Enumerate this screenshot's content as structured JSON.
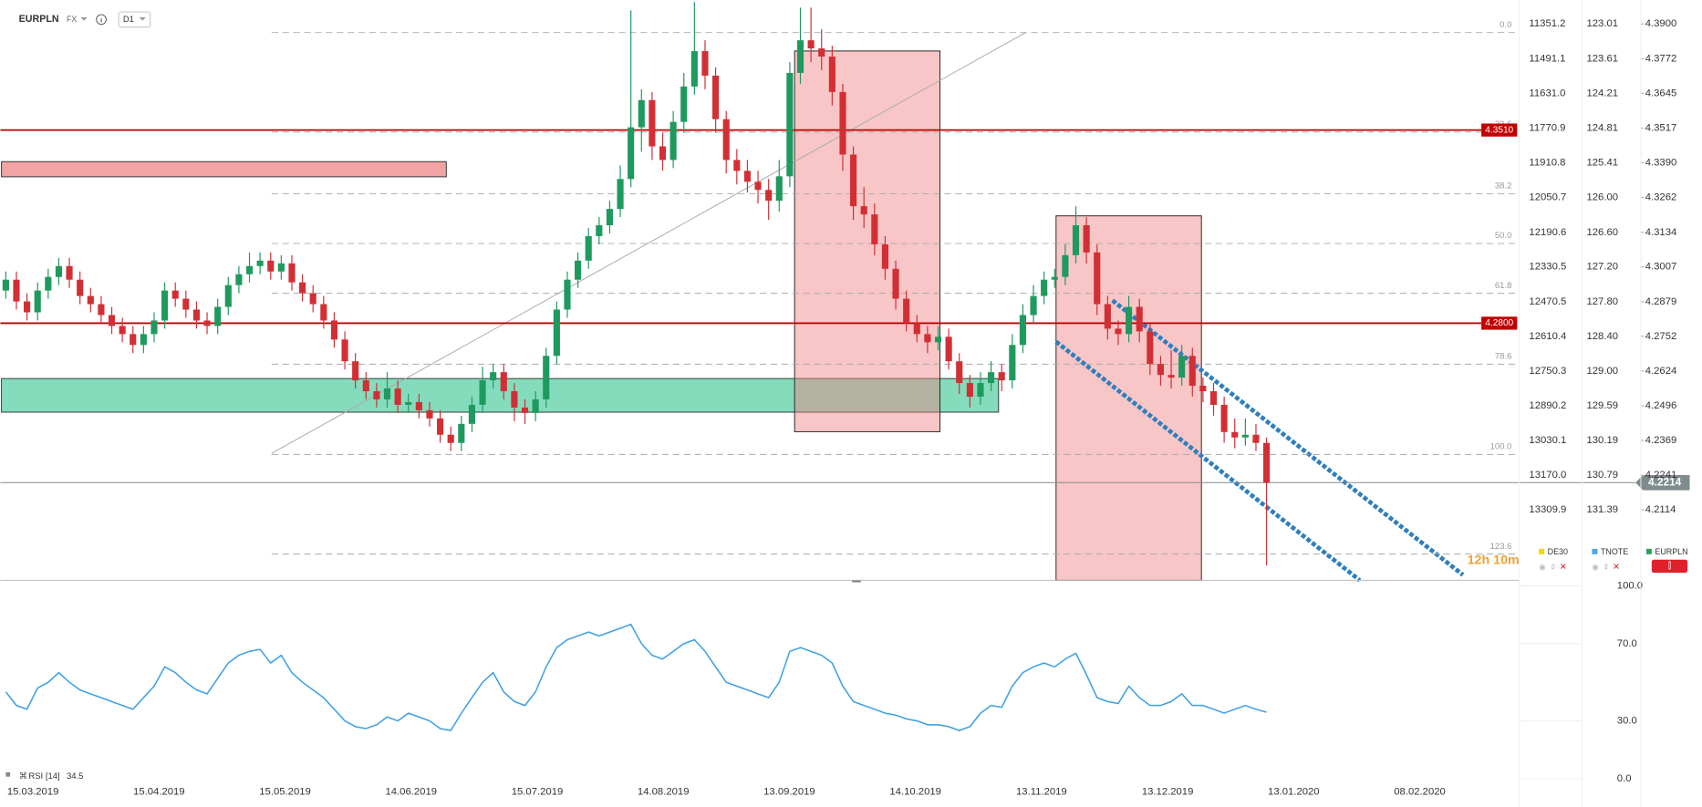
{
  "header": {
    "symbol": "EURPLN",
    "market": "FX",
    "interval": "D1"
  },
  "chart_data": [
    {
      "type": "candlestick",
      "name": "EURPLN",
      "color": "#2ca05a",
      "up_color": "#1f9a5e",
      "down_color": "#d22f35",
      "ylim": [
        4.1855,
        4.3988
      ],
      "yticks": [
        {
          "value": 4.39,
          "label": "4.3900"
        },
        4.3772,
        4.3645,
        4.3517,
        {
          "value": 4.339,
          "label": "4.3390"
        },
        4.3262,
        4.3134,
        4.3007,
        4.2879,
        4.2752,
        4.2624,
        4.2496,
        4.2369,
        4.2241,
        4.2114
      ],
      "xticks": [
        "15.03.2019",
        "15.04.2019",
        "15.05.2019",
        "14.06.2019",
        "15.07.2019",
        "14.08.2019",
        "13.09.2019",
        "14.10.2019",
        "13.11.2019",
        "13.12.2019",
        "13.01.2020",
        "08.02.2020"
      ],
      "hlines": [
        {
          "value": 4.351,
          "label": "4.3510",
          "color": "#c00000"
        },
        {
          "value": 4.28,
          "label": "4.2800",
          "color": "#c00000"
        }
      ],
      "fib_levels": [
        {
          "value": 0,
          "label": "0.0"
        },
        23.6,
        38.2,
        {
          "value": 50,
          "label": "50.0"
        },
        61.8,
        78.6,
        {
          "value": 100,
          "label": "100.0"
        },
        123.6
      ],
      "compare_axes": [
        {
          "name": "DE30",
          "color": "#f2d600",
          "ticks": [
            "11351.2",
            "11491.1",
            "11631.0",
            "11770.9",
            "11910.8",
            "12050.7",
            "12190.6",
            "12330.5",
            "12470.5",
            "12610.4",
            "12750.3",
            "12890.2",
            "13030.1",
            "13170.0",
            "13309.9"
          ]
        },
        {
          "name": "TNOTE",
          "color": "#4aa8e0",
          "ticks": [
            "123.01",
            "123.61",
            "124.21",
            "124.81",
            "125.41",
            "126.00",
            "126.60",
            "127.20",
            "127.80",
            "128.40",
            "129.00",
            "129.59",
            "130.19",
            "130.79",
            "131.39"
          ]
        }
      ],
      "timer": "12h 10m",
      "candles": [
        [
          4.292,
          4.299,
          4.289,
          4.296
        ],
        [
          4.296,
          4.299,
          4.285,
          4.288
        ],
        [
          4.288,
          4.291,
          4.281,
          4.284
        ],
        [
          4.284,
          4.295,
          4.281,
          4.292
        ],
        [
          4.292,
          4.3,
          4.289,
          4.297
        ],
        [
          4.297,
          4.304,
          4.294,
          4.301
        ],
        [
          4.301,
          4.304,
          4.293,
          4.296
        ],
        [
          4.296,
          4.299,
          4.287,
          4.29
        ],
        [
          4.29,
          4.293,
          4.284,
          4.287
        ],
        [
          4.287,
          4.29,
          4.28,
          4.283
        ],
        [
          4.283,
          4.286,
          4.276,
          4.279
        ],
        [
          4.279,
          4.282,
          4.273,
          4.276
        ],
        [
          4.276,
          4.279,
          4.269,
          4.272
        ],
        [
          4.272,
          4.279,
          4.269,
          4.276
        ],
        [
          4.276,
          4.284,
          4.273,
          4.281
        ],
        [
          4.281,
          4.295,
          4.278,
          4.292
        ],
        [
          4.292,
          4.295,
          4.286,
          4.289
        ],
        [
          4.289,
          4.292,
          4.282,
          4.285
        ],
        [
          4.285,
          4.288,
          4.278,
          4.281
        ],
        [
          4.281,
          4.284,
          4.276,
          4.279
        ],
        [
          4.279,
          4.289,
          4.276,
          4.286
        ],
        [
          4.286,
          4.297,
          4.283,
          4.294
        ],
        [
          4.294,
          4.301,
          4.291,
          4.298
        ],
        [
          4.298,
          4.306,
          4.295,
          4.301
        ],
        [
          4.301,
          4.306,
          4.298,
          4.303
        ],
        [
          4.303,
          4.306,
          4.296,
          4.299
        ],
        [
          4.299,
          4.305,
          4.296,
          4.302
        ],
        [
          4.302,
          4.305,
          4.292,
          4.295
        ],
        [
          4.295,
          4.298,
          4.288,
          4.291
        ],
        [
          4.291,
          4.294,
          4.284,
          4.287
        ],
        [
          4.287,
          4.29,
          4.278,
          4.281
        ],
        [
          4.281,
          4.284,
          4.271,
          4.274
        ],
        [
          4.274,
          4.277,
          4.263,
          4.266
        ],
        [
          4.266,
          4.269,
          4.256,
          4.259
        ],
        [
          4.259,
          4.262,
          4.252,
          4.255
        ],
        [
          4.255,
          4.258,
          4.249,
          4.252
        ],
        [
          4.252,
          4.262,
          4.249,
          4.256
        ],
        [
          4.256,
          4.259,
          4.247,
          4.25
        ],
        [
          4.25,
          4.254,
          4.247,
          4.251
        ],
        [
          4.251,
          4.254,
          4.245,
          4.248
        ],
        [
          4.248,
          4.251,
          4.242,
          4.245
        ],
        [
          4.245,
          4.248,
          4.236,
          4.239
        ],
        [
          4.239,
          4.242,
          4.233,
          4.236
        ],
        [
          4.236,
          4.246,
          4.233,
          4.243
        ],
        [
          4.243,
          4.253,
          4.24,
          4.25
        ],
        [
          4.25,
          4.264,
          4.247,
          4.259
        ],
        [
          4.259,
          4.265,
          4.256,
          4.262
        ],
        [
          4.262,
          4.265,
          4.252,
          4.255
        ],
        [
          4.255,
          4.258,
          4.244,
          4.249
        ],
        [
          4.249,
          4.252,
          4.243,
          4.247
        ],
        [
          4.247,
          4.255,
          4.244,
          4.252
        ],
        [
          4.252,
          4.271,
          4.249,
          4.268
        ],
        [
          4.268,
          4.288,
          4.265,
          4.285
        ],
        [
          4.285,
          4.299,
          4.282,
          4.296
        ],
        [
          4.296,
          4.306,
          4.293,
          4.303
        ],
        [
          4.303,
          4.315,
          4.3,
          4.312
        ],
        [
          4.312,
          4.319,
          4.309,
          4.316
        ],
        [
          4.316,
          4.325,
          4.313,
          4.322
        ],
        [
          4.322,
          4.338,
          4.319,
          4.333
        ],
        [
          4.333,
          4.395,
          4.33,
          4.352
        ],
        [
          4.352,
          4.366,
          4.343,
          4.362
        ],
        [
          4.362,
          4.365,
          4.34,
          4.345
        ],
        [
          4.345,
          4.35,
          4.336,
          4.34
        ],
        [
          4.34,
          4.358,
          4.337,
          4.354
        ],
        [
          4.354,
          4.372,
          4.35,
          4.367
        ],
        [
          4.367,
          4.398,
          4.364,
          4.38
        ],
        [
          4.38,
          4.384,
          4.366,
          4.371
        ],
        [
          4.371,
          4.374,
          4.35,
          4.355
        ],
        [
          4.355,
          4.358,
          4.335,
          4.34
        ],
        [
          4.34,
          4.344,
          4.331,
          4.336
        ],
        [
          4.336,
          4.34,
          4.328,
          4.332
        ],
        [
          4.332,
          4.336,
          4.324,
          4.329
        ],
        [
          4.329,
          4.333,
          4.318,
          4.325
        ],
        [
          4.325,
          4.34,
          4.321,
          4.334
        ],
        [
          4.334,
          4.376,
          4.33,
          4.372
        ],
        [
          4.372,
          4.396,
          4.368,
          4.384
        ],
        [
          4.384,
          4.396,
          4.376,
          4.381
        ],
        [
          4.381,
          4.388,
          4.373,
          4.378
        ],
        [
          4.378,
          4.382,
          4.36,
          4.365
        ],
        [
          4.365,
          4.368,
          4.336,
          4.342
        ],
        [
          4.342,
          4.345,
          4.318,
          4.323
        ],
        [
          4.323,
          4.33,
          4.315,
          4.32
        ],
        [
          4.32,
          4.324,
          4.305,
          4.309
        ],
        [
          4.309,
          4.312,
          4.296,
          4.3
        ],
        [
          4.3,
          4.303,
          4.285,
          4.289
        ],
        [
          4.289,
          4.292,
          4.277,
          4.28
        ],
        [
          4.28,
          4.283,
          4.273,
          4.276
        ],
        [
          4.276,
          4.279,
          4.269,
          4.273
        ],
        [
          4.273,
          4.279,
          4.27,
          4.275
        ],
        [
          4.275,
          4.278,
          4.263,
          4.266
        ],
        [
          4.266,
          4.269,
          4.254,
          4.258
        ],
        [
          4.258,
          4.261,
          4.249,
          4.253
        ],
        [
          4.253,
          4.262,
          4.25,
          4.258
        ],
        [
          4.258,
          4.266,
          4.255,
          4.262
        ],
        [
          4.262,
          4.265,
          4.255,
          4.259
        ],
        [
          4.259,
          4.276,
          4.256,
          4.272
        ],
        [
          4.272,
          4.287,
          4.269,
          4.283
        ],
        [
          4.283,
          4.294,
          4.28,
          4.29
        ],
        [
          4.29,
          4.299,
          4.287,
          4.296
        ],
        [
          4.296,
          4.3,
          4.293,
          4.297
        ],
        [
          4.297,
          4.309,
          4.294,
          4.305
        ],
        [
          4.305,
          4.323,
          4.302,
          4.316
        ],
        [
          4.316,
          4.319,
          4.302,
          4.306
        ],
        [
          4.306,
          4.309,
          4.283,
          4.287
        ],
        [
          4.287,
          4.29,
          4.274,
          4.278
        ],
        [
          4.278,
          4.281,
          4.272,
          4.276
        ],
        [
          4.276,
          4.29,
          4.273,
          4.286
        ],
        [
          4.286,
          4.289,
          4.273,
          4.277
        ],
        [
          4.277,
          4.28,
          4.261,
          4.265
        ],
        [
          4.265,
          4.268,
          4.257,
          4.261
        ],
        [
          4.261,
          4.27,
          4.256,
          4.26
        ],
        [
          4.26,
          4.272,
          4.257,
          4.268
        ],
        [
          4.268,
          4.271,
          4.253,
          4.257
        ],
        [
          4.257,
          4.26,
          4.251,
          4.255
        ],
        [
          4.255,
          4.258,
          4.246,
          4.25
        ],
        [
          4.25,
          4.253,
          4.236,
          4.24
        ],
        [
          4.24,
          4.245,
          4.234,
          4.238
        ],
        [
          4.238,
          4.245,
          4.235,
          4.239
        ],
        [
          4.239,
          4.243,
          4.233,
          4.236
        ],
        [
          4.236,
          4.238,
          4.191,
          4.2214
        ]
      ]
    },
    {
      "type": "line",
      "name": "RSI [14]",
      "color": "#3ea0e4",
      "ylim": [
        0,
        100
      ],
      "yticks": [
        {
          "value": 100,
          "label": "100.0"
        },
        {
          "value": 70,
          "label": "70.0"
        },
        {
          "value": 30,
          "label": "30.0"
        },
        {
          "value": 0,
          "label": "0.0"
        }
      ],
      "values": [
        45,
        38,
        36,
        47,
        50,
        55,
        50,
        46,
        44,
        42,
        40,
        38,
        36,
        42,
        48,
        58,
        55,
        50,
        46,
        44,
        52,
        60,
        64,
        66,
        67,
        60,
        64,
        55,
        50,
        46,
        42,
        36,
        30,
        27,
        26,
        28,
        32,
        30,
        34,
        32,
        30,
        26,
        25,
        34,
        42,
        50,
        55,
        45,
        40,
        38,
        45,
        58,
        68,
        72,
        74,
        76,
        74,
        76,
        78,
        80,
        70,
        64,
        62,
        66,
        70,
        72,
        66,
        58,
        50,
        48,
        46,
        44,
        42,
        50,
        66,
        68,
        66,
        64,
        60,
        48,
        40,
        38,
        36,
        34,
        33,
        31,
        30,
        28,
        28,
        27,
        25,
        27,
        34,
        38,
        37,
        48,
        55,
        58,
        60,
        58,
        62,
        65,
        54,
        42,
        40,
        39,
        48,
        42,
        38,
        38,
        40,
        44,
        38,
        38,
        36,
        34,
        36,
        38,
        36,
        34.5
      ]
    }
  ]
}
